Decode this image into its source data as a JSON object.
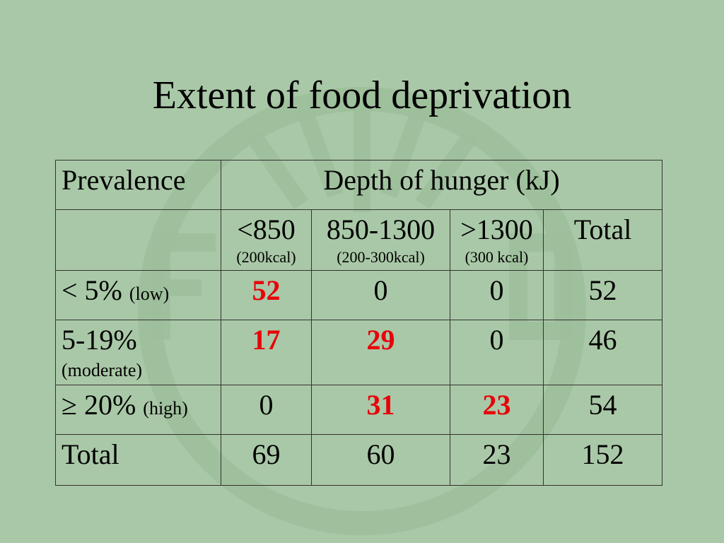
{
  "slide": {
    "title": "Extent of food deprivation"
  },
  "table": {
    "header_prevalence": "Prevalence",
    "header_depth": "Depth of hunger (kJ)",
    "columns": [
      {
        "label": "<850",
        "sub": "(200kcal)"
      },
      {
        "label": "850-1300",
        "sub": "(200-300kcal)"
      },
      {
        "label": ">1300",
        "sub": "(300 kcal)"
      },
      {
        "label": "Total",
        "sub": ""
      }
    ],
    "rows": [
      {
        "label": "< 5%",
        "note": "(low)",
        "values": [
          "52",
          "0",
          "0",
          "52"
        ]
      },
      {
        "label": "5-19%",
        "note": "(moderate)",
        "values": [
          "17",
          "29",
          "0",
          "46"
        ]
      },
      {
        "label": "≥ 20%",
        "note": "(high)",
        "values": [
          "0",
          "31",
          "23",
          "54"
        ]
      },
      {
        "label": "Total",
        "note": "",
        "values": [
          "69",
          "60",
          "23",
          "152"
        ]
      }
    ]
  },
  "colors": {
    "background": "#a9c8a7",
    "highlight": "#e8000a",
    "watermark": "#97b995"
  },
  "decor": {
    "watermark_icon": "fao-emblem-icon"
  }
}
